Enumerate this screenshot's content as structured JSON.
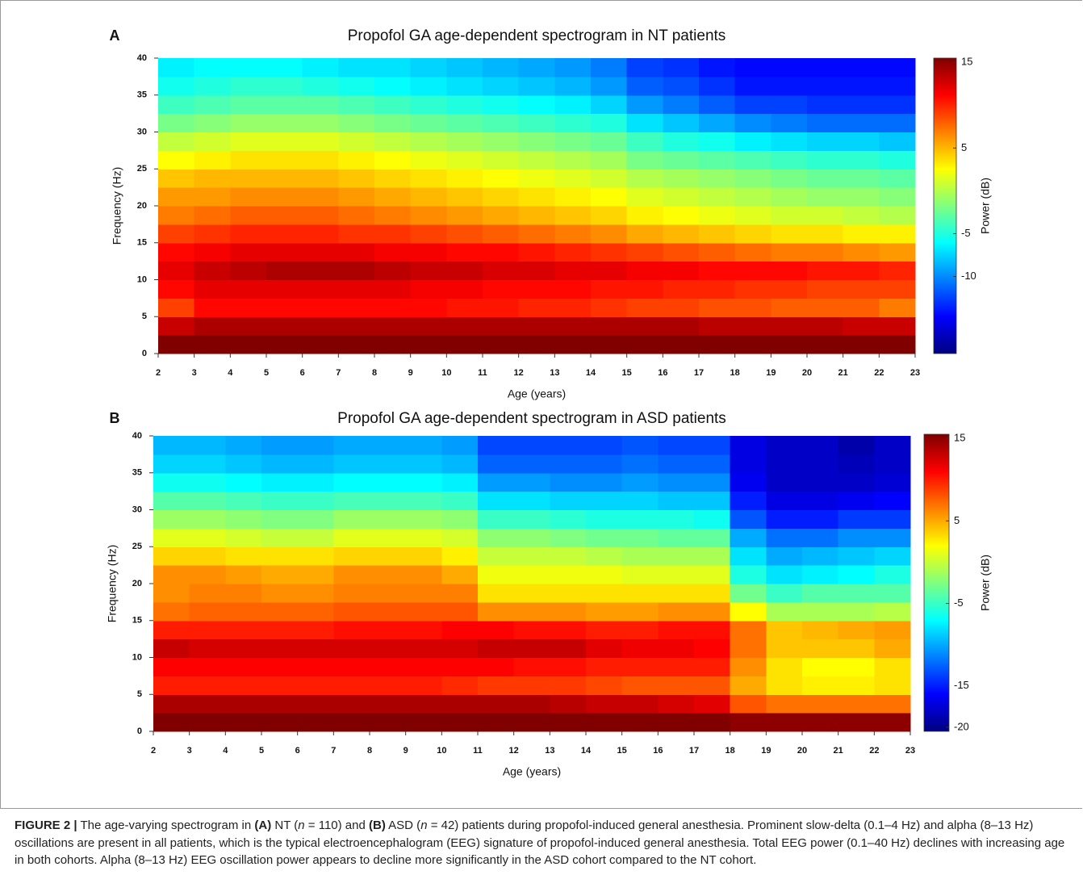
{
  "chart_data": [
    {
      "type": "heatmap",
      "panel_label": "A",
      "title": "Propofol GA age-dependent spectrogram in NT patients",
      "xlabel": "Age (years)",
      "ylabel": "Frequency (Hz)",
      "colorbar_label": "Power (dB)",
      "colormap": "jet",
      "x": [
        2.5,
        3.5,
        4.5,
        5.5,
        6.5,
        7.5,
        8.5,
        9.5,
        10.5,
        11.5,
        12.5,
        13.5,
        14.5,
        15.5,
        16.5,
        17.5,
        18.5,
        19.5,
        20.5,
        21.5,
        22.5
      ],
      "y": [
        1.25,
        3.75,
        6.25,
        8.75,
        11.25,
        13.75,
        16.25,
        18.75,
        21.25,
        23.75,
        26.25,
        28.75,
        31.25,
        33.75,
        36.25,
        38.75
      ],
      "z": [
        [
          16,
          16,
          16,
          16,
          16,
          16,
          16,
          16,
          16,
          16,
          16,
          16,
          16,
          16,
          16,
          15.5,
          15.5,
          15.5,
          15.5,
          15.5,
          15.5
        ],
        [
          13,
          14,
          14,
          14,
          14,
          14,
          14,
          14,
          14,
          14,
          14,
          14,
          14,
          14,
          14,
          13.5,
          13.5,
          13.5,
          13.5,
          13,
          13
        ],
        [
          9,
          11,
          11,
          11,
          11,
          11,
          11,
          11,
          10.5,
          10.5,
          10,
          10,
          9.5,
          9,
          9,
          8.5,
          8.5,
          8,
          8,
          8,
          7
        ],
        [
          11,
          12,
          12,
          12,
          12,
          12,
          12,
          11.5,
          11.5,
          11,
          11,
          11,
          10.5,
          10.5,
          10,
          10,
          9.5,
          9.5,
          9,
          9,
          9
        ],
        [
          12,
          13,
          13.5,
          14,
          14,
          14,
          13.5,
          13,
          13,
          12.5,
          12.5,
          12,
          12,
          11.5,
          11.5,
          11,
          11,
          11,
          10.5,
          10.5,
          10
        ],
        [
          11,
          11.5,
          12,
          12,
          12,
          12,
          11.5,
          11.5,
          11,
          11,
          10.5,
          10,
          9.5,
          9,
          8.5,
          8,
          7.5,
          7,
          7,
          6.5,
          6
        ],
        [
          9,
          9.5,
          10,
          10,
          10,
          9.5,
          9.5,
          9,
          8.5,
          8,
          7.5,
          7,
          6.5,
          5.5,
          5,
          4.5,
          4,
          3.5,
          3.5,
          3,
          3
        ],
        [
          7,
          7.5,
          8,
          8,
          8,
          7.5,
          7,
          6.5,
          6,
          5.5,
          5,
          4.5,
          4,
          3,
          2.5,
          2,
          1.5,
          1,
          1,
          0.5,
          0
        ],
        [
          6,
          6,
          6.5,
          6.5,
          6.5,
          6,
          5.5,
          5,
          4.5,
          4,
          3.5,
          3,
          2.5,
          1.5,
          1,
          0.5,
          0,
          -0.5,
          -1,
          -1,
          -1.5
        ],
        [
          4.5,
          5,
          5,
          5,
          5,
          4.5,
          4,
          3.5,
          3,
          2.5,
          2,
          1.5,
          1,
          0,
          -0.5,
          -1,
          -1.5,
          -2,
          -2.5,
          -2.5,
          -3
        ],
        [
          2.5,
          3,
          3.5,
          3.5,
          3.5,
          3,
          2.5,
          2,
          1.5,
          1,
          0.5,
          0,
          -0.5,
          -2,
          -2.5,
          -3,
          -3.5,
          -4,
          -4.5,
          -4.5,
          -5
        ],
        [
          0.5,
          1,
          1.5,
          1.5,
          1.5,
          1,
          0.5,
          0,
          -0.5,
          -1,
          -1.5,
          -2,
          -2.5,
          -4,
          -5,
          -5.5,
          -6.5,
          -7,
          -7.5,
          -7.5,
          -8
        ],
        [
          -2,
          -1.5,
          -1,
          -1,
          -1,
          -1.5,
          -2,
          -2.5,
          -3,
          -3.5,
          -4,
          -4.5,
          -5,
          -7,
          -8,
          -9,
          -10,
          -10.5,
          -11,
          -11,
          -11
        ],
        [
          -4,
          -3.5,
          -3,
          -3,
          -3,
          -3.5,
          -4,
          -4.5,
          -5,
          -5.5,
          -6,
          -6.5,
          -7.5,
          -9.5,
          -10.5,
          -11.5,
          -12.5,
          -12.5,
          -13,
          -13,
          -13
        ],
        [
          -5.5,
          -5,
          -4.5,
          -4.5,
          -5,
          -5.5,
          -6,
          -6.5,
          -7,
          -7.5,
          -8,
          -8.5,
          -9.5,
          -11.5,
          -12,
          -13,
          -14,
          -14,
          -14,
          -14,
          -14
        ],
        [
          -6.5,
          -6,
          -6,
          -6,
          -6.5,
          -7,
          -7,
          -7.5,
          -8,
          -8.5,
          -9,
          -9.5,
          -10.5,
          -12.5,
          -13,
          -14,
          -14.5,
          -14.5,
          -14.5,
          -14.5,
          -14.5
        ]
      ],
      "xlim": [
        2,
        23
      ],
      "ylim": [
        0,
        40
      ],
      "zlim": [
        -19,
        15.5
      ],
      "xticks": [
        2,
        3,
        4,
        5,
        6,
        7,
        8,
        9,
        10,
        11,
        12,
        13,
        14,
        15,
        16,
        17,
        18,
        19,
        20,
        21,
        22,
        23
      ],
      "yticks": [
        0,
        5,
        10,
        15,
        20,
        25,
        30,
        35,
        40
      ],
      "zticks": [
        15,
        5,
        -5,
        -10
      ]
    },
    {
      "type": "heatmap",
      "panel_label": "B",
      "title": "Propofol GA age-dependent spectrogram in ASD patients",
      "xlabel": "Age (years)",
      "ylabel": "Frequency (Hz)",
      "colorbar_label": "Power (dB)",
      "colormap": "jet",
      "x": [
        2.5,
        3.5,
        4.5,
        5.5,
        6.5,
        7.5,
        8.5,
        9.5,
        10.5,
        11.5,
        12.5,
        13.5,
        14.5,
        15.5,
        16.5,
        17.5,
        18.5,
        19.5,
        20.5,
        21.5,
        22.5
      ],
      "y": [
        1.25,
        3.75,
        6.25,
        8.75,
        11.25,
        13.75,
        16.25,
        18.75,
        21.25,
        23.75,
        26.25,
        28.75,
        31.25,
        33.75,
        36.25,
        38.75
      ],
      "z": [
        [
          15.5,
          15.5,
          15.5,
          15.5,
          15.5,
          15.5,
          15.5,
          15.5,
          15.5,
          15.5,
          15.5,
          15.5,
          15.5,
          15.5,
          15.5,
          15.5,
          15,
          15,
          15,
          15,
          15
        ],
        [
          14,
          14,
          14,
          14,
          14,
          14,
          14,
          14,
          14,
          14,
          14,
          13.5,
          13,
          13,
          12.5,
          12,
          8,
          7,
          7,
          7,
          7
        ],
        [
          10,
          10,
          10,
          10,
          10,
          10,
          10,
          10,
          9.5,
          9,
          9,
          9,
          8.5,
          8,
          8,
          8,
          5,
          3,
          2.5,
          2.5,
          3
        ],
        [
          11,
          11,
          11,
          11,
          11,
          11,
          11,
          11,
          11,
          11,
          10.5,
          10.5,
          10,
          10,
          10,
          10,
          6,
          3,
          2,
          2,
          3
        ],
        [
          13,
          12.5,
          12.5,
          12.5,
          12.5,
          12.5,
          12.5,
          12.5,
          12.5,
          13,
          13,
          13,
          12,
          11.5,
          11.5,
          11,
          7,
          4,
          4,
          4,
          5
        ],
        [
          10,
          10,
          10,
          10,
          10,
          10.5,
          10.5,
          10.5,
          11,
          11,
          10.5,
          10.5,
          10,
          10,
          10.5,
          10.5,
          7,
          4,
          4.5,
          5,
          5.5
        ],
        [
          7,
          7.5,
          7.5,
          7.5,
          7.5,
          8,
          8,
          8,
          8,
          6,
          6,
          6,
          5.5,
          5.5,
          6,
          6,
          2,
          -1,
          -1,
          -1,
          -0.5
        ],
        [
          6,
          6.5,
          6.5,
          6,
          6,
          6.5,
          6.5,
          6.5,
          6.5,
          3,
          3,
          3,
          3,
          3,
          3,
          3,
          -3,
          -5,
          -4,
          -4,
          -4
        ],
        [
          6,
          6,
          5.5,
          5,
          5,
          6,
          6,
          6,
          5,
          1.5,
          1.5,
          1.5,
          1.5,
          1,
          1,
          1,
          -6,
          -8,
          -7.5,
          -7,
          -6
        ],
        [
          3.5,
          3.5,
          3,
          3,
          3,
          3.5,
          3.5,
          3.5,
          2.5,
          0,
          0,
          0,
          -0.5,
          -1,
          -1,
          -1,
          -8,
          -10,
          -9.5,
          -9,
          -8.5
        ],
        [
          1,
          1,
          0.5,
          0,
          0,
          1,
          1,
          1,
          0.5,
          -2,
          -2,
          -2.5,
          -3,
          -3,
          -3.5,
          -3.5,
          -10,
          -12,
          -12,
          -11,
          -11
        ],
        [
          -1.5,
          -1.5,
          -2,
          -2.5,
          -2.5,
          -1.5,
          -1.5,
          -1.5,
          -2,
          -5,
          -5,
          -5.5,
          -6,
          -6,
          -6,
          -6.5,
          -13,
          -15,
          -15,
          -14,
          -14
        ],
        [
          -4,
          -4,
          -4.5,
          -5,
          -5,
          -4.5,
          -4.5,
          -4.5,
          -5,
          -8,
          -8,
          -8.5,
          -8.5,
          -8.5,
          -9,
          -9,
          -15,
          -17,
          -17,
          -16.5,
          -16
        ],
        [
          -6.5,
          -6.5,
          -7,
          -7.5,
          -7.5,
          -7,
          -7,
          -7,
          -7.5,
          -10.5,
          -10.5,
          -11,
          -11,
          -10.5,
          -11,
          -11,
          -16.5,
          -18,
          -18,
          -18,
          -17.5
        ],
        [
          -8.5,
          -8.5,
          -9,
          -9.5,
          -9.5,
          -9,
          -9,
          -9,
          -9.5,
          -12.5,
          -12.5,
          -12.5,
          -12.5,
          -12,
          -12.5,
          -12.5,
          -17,
          -18,
          -18,
          -18.5,
          -18
        ],
        [
          -9.5,
          -9.5,
          -10,
          -10.5,
          -10.5,
          -10,
          -10,
          -10,
          -10.5,
          -13.5,
          -13.5,
          -13.5,
          -13.5,
          -13,
          -13.5,
          -13.5,
          -17,
          -18,
          -18,
          -19,
          -18
        ]
      ],
      "xlim": [
        2,
        23
      ],
      "ylim": [
        0,
        40
      ],
      "zlim": [
        -20.5,
        15.5
      ],
      "xticks": [
        2,
        3,
        4,
        5,
        6,
        7,
        8,
        9,
        10,
        11,
        12,
        13,
        14,
        15,
        16,
        17,
        18,
        19,
        20,
        21,
        22,
        23
      ],
      "yticks": [
        0,
        5,
        10,
        15,
        20,
        25,
        30,
        35,
        40
      ],
      "zticks": [
        15,
        5,
        -5,
        -15,
        -20
      ]
    }
  ],
  "caption": {
    "segments": [
      {
        "text": "FIGURE 2 |",
        "style": "bold"
      },
      {
        "text": " The age-varying spectrogram in ",
        "style": "normal"
      },
      {
        "text": "(A)",
        "style": "bold"
      },
      {
        "text": " NT (",
        "style": "normal"
      },
      {
        "text": "n",
        "style": "italic"
      },
      {
        "text": " = 110) and ",
        "style": "normal"
      },
      {
        "text": "(B)",
        "style": "bold"
      },
      {
        "text": " ASD (",
        "style": "normal"
      },
      {
        "text": "n",
        "style": "italic"
      },
      {
        "text": " = 42) patients during propofol-induced general anesthesia. Prominent slow-delta (0.1–4 Hz) and alpha (8–13 Hz) oscillations are present in all patients, which is the typical electroencephalogram (EEG) signature of propofol-induced general anesthesia. Total EEG power (0.1–40 Hz) declines with increasing age in both cohorts. Alpha (8–13 Hz) EEG oscillation power appears to decline more significantly in the ASD cohort compared to the NT cohort.",
        "style": "normal"
      }
    ]
  }
}
